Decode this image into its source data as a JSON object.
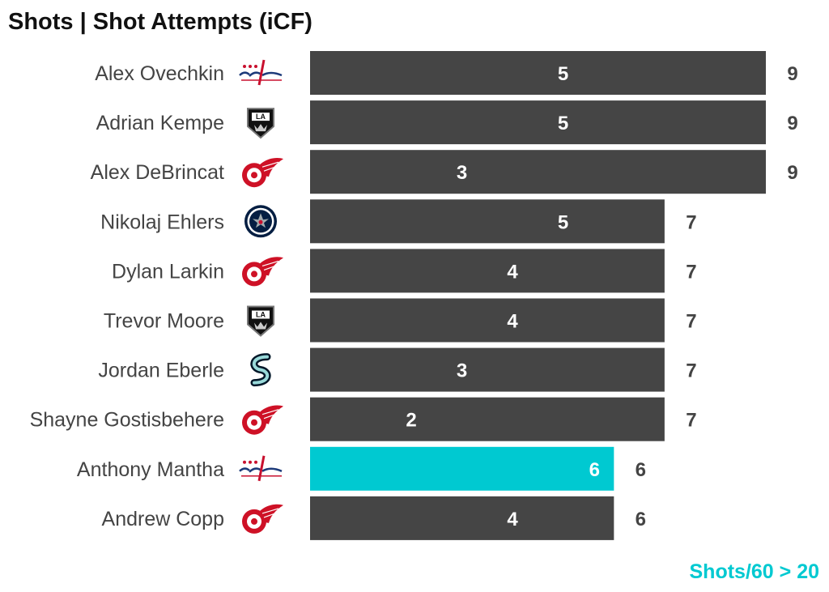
{
  "chart_data": {
    "type": "bar",
    "orientation": "horizontal",
    "title": "Shots | Shot Attempts (iCF)",
    "footnote": "Shots/60 > 20",
    "highlight_color": "#00c9d1",
    "base_color": "#454545",
    "xlim": [
      0,
      9
    ],
    "rows": [
      {
        "player": "Alex Ovechkin",
        "team_logo": "capitals-logo",
        "shots": 5,
        "shot_attempts": 9,
        "highlight": false
      },
      {
        "player": "Adrian Kempe",
        "team_logo": "kings-logo",
        "shots": 5,
        "shot_attempts": 9,
        "highlight": false
      },
      {
        "player": "Alex DeBrincat",
        "team_logo": "red-wings-logo",
        "shots": 3,
        "shot_attempts": 9,
        "highlight": false
      },
      {
        "player": "Nikolaj Ehlers",
        "team_logo": "jets-logo",
        "shots": 5,
        "shot_attempts": 7,
        "highlight": false
      },
      {
        "player": "Dylan Larkin",
        "team_logo": "red-wings-logo",
        "shots": 4,
        "shot_attempts": 7,
        "highlight": false
      },
      {
        "player": "Trevor Moore",
        "team_logo": "kings-logo",
        "shots": 4,
        "shot_attempts": 7,
        "highlight": false
      },
      {
        "player": "Jordan Eberle",
        "team_logo": "kraken-logo",
        "shots": 3,
        "shot_attempts": 7,
        "highlight": false
      },
      {
        "player": "Shayne Gostisbehere",
        "team_logo": "red-wings-logo",
        "shots": 2,
        "shot_attempts": 7,
        "highlight": false
      },
      {
        "player": "Anthony Mantha",
        "team_logo": "capitals-logo",
        "shots": 6,
        "shot_attempts": 6,
        "highlight": true
      },
      {
        "player": "Andrew Copp",
        "team_logo": "red-wings-logo",
        "shots": 4,
        "shot_attempts": 6,
        "highlight": false
      }
    ]
  }
}
